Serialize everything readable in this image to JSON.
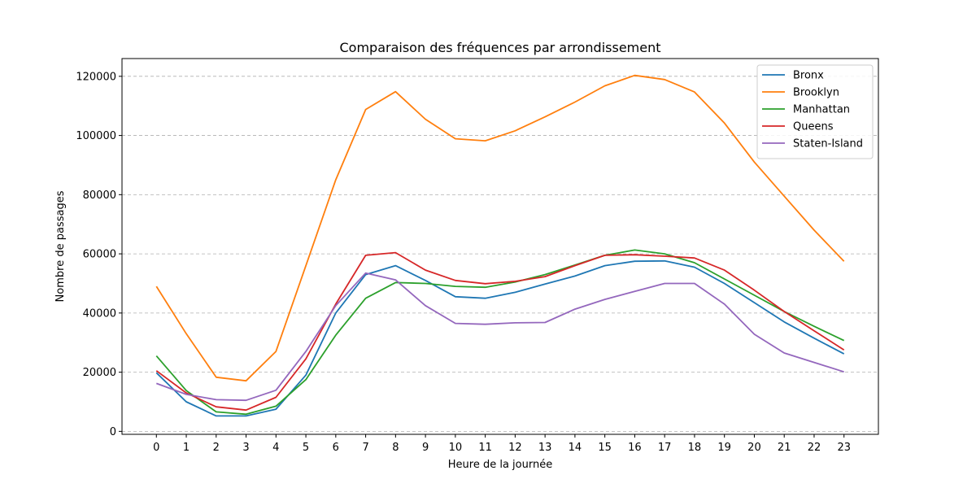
{
  "chart_data": {
    "type": "line",
    "title": "Comparaison des fréquences par arrondissement",
    "xlabel": "Heure de la journée",
    "ylabel": "Nombre de passages",
    "x": [
      0,
      1,
      2,
      3,
      4,
      5,
      6,
      7,
      8,
      9,
      10,
      11,
      12,
      13,
      14,
      15,
      16,
      17,
      18,
      19,
      20,
      21,
      22,
      23
    ],
    "xticks": [
      "0",
      "1",
      "2",
      "3",
      "4",
      "5",
      "6",
      "7",
      "8",
      "9",
      "10",
      "11",
      "12",
      "13",
      "14",
      "15",
      "16",
      "17",
      "18",
      "19",
      "20",
      "21",
      "22",
      "23"
    ],
    "yticks": [
      "0",
      "20000",
      "40000",
      "60000",
      "80000",
      "100000",
      "120000"
    ],
    "ytick_values": [
      0,
      20000,
      40000,
      60000,
      80000,
      100000,
      120000
    ],
    "ylim": [
      -1000,
      126000
    ],
    "xlim": [
      -1.15,
      24.15
    ],
    "grid": "y-dashed",
    "legend_position": "top-right",
    "series": [
      {
        "name": "Bronx",
        "color": "#1f77b4",
        "values": [
          19800,
          10000,
          5200,
          5200,
          7500,
          19000,
          40000,
          53000,
          56000,
          51000,
          45500,
          45000,
          47000,
          49800,
          52500,
          56000,
          57500,
          57600,
          55500,
          50000,
          43500,
          37000,
          31500,
          26200
        ]
      },
      {
        "name": "Brooklyn",
        "color": "#ff7f0e",
        "values": [
          49000,
          33000,
          18300,
          17100,
          27000,
          56000,
          85000,
          108800,
          114800,
          105500,
          98900,
          98200,
          101600,
          106300,
          111300,
          116800,
          120300,
          118900,
          114700,
          104200,
          91000,
          79500,
          68000,
          57500
        ]
      },
      {
        "name": "Manhattan",
        "color": "#2ca02c",
        "values": [
          25500,
          13800,
          6600,
          5800,
          8500,
          17500,
          32500,
          45000,
          50300,
          50000,
          49000,
          48700,
          50500,
          53000,
          56200,
          59500,
          61300,
          60000,
          57000,
          51500,
          46000,
          40500,
          35500,
          30700
        ]
      },
      {
        "name": "Queens",
        "color": "#d62728",
        "values": [
          20500,
          13000,
          8300,
          7200,
          11500,
          24500,
          43000,
          59500,
          60400,
          54500,
          51000,
          49900,
          50700,
          52300,
          56000,
          59500,
          59700,
          59200,
          58600,
          54500,
          47700,
          40500,
          34000,
          27500
        ]
      },
      {
        "name": "Staten-Island",
        "color": "#9467bd",
        "values": [
          16200,
          12500,
          10700,
          10500,
          13900,
          27000,
          42500,
          53500,
          51200,
          42500,
          36500,
          36200,
          36700,
          36800,
          41300,
          44600,
          47300,
          50000,
          50000,
          43000,
          32800,
          26500,
          23300,
          20100
        ]
      }
    ]
  }
}
